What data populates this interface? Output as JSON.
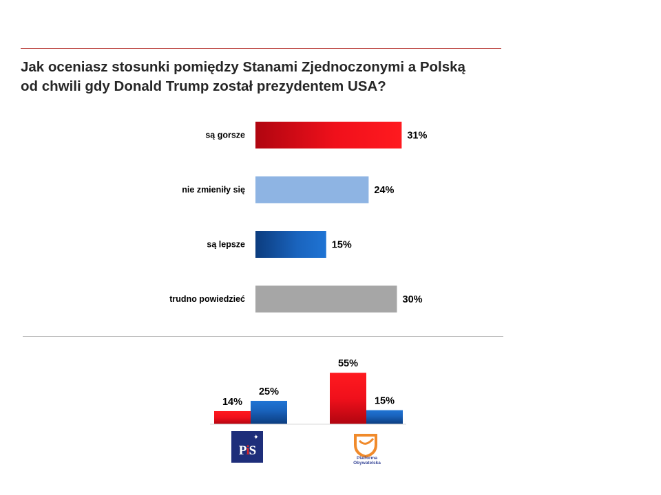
{
  "title_lines": [
    "Jak oceniasz stosunki pomiędzy Stanami Zjednoczonymi a Polską",
    "od chwili gdy Donald Trump został prezydentem USA?"
  ],
  "chart_data": [
    {
      "type": "bar",
      "orientation": "horizontal",
      "categories": [
        "są gorsze",
        "nie zmieniły się",
        "są lepsze",
        "trudno powiedzieć"
      ],
      "values": [
        31,
        24,
        15,
        30
      ],
      "value_labels": [
        "31%",
        "24%",
        "15%",
        "30%"
      ],
      "colors": [
        "#e8121b",
        "#8eb4e3",
        "#1f6fc5",
        "#a6a6a6"
      ],
      "unit": "%"
    },
    {
      "type": "bar",
      "orientation": "vertical",
      "categories": [
        "PiS",
        "Platforma Obywatelska"
      ],
      "series": [
        {
          "color": "#e8121b",
          "values": [
            14,
            55
          ],
          "value_labels": [
            "14%",
            "55%"
          ]
        },
        {
          "color": "#1f6fc5",
          "values": [
            25,
            15
          ],
          "value_labels": [
            "25%",
            "15%"
          ]
        }
      ],
      "unit": "%"
    }
  ],
  "logos": {
    "pis_text": "PiS",
    "po_text_lines": [
      "Platforma",
      "Obywatelska"
    ]
  }
}
